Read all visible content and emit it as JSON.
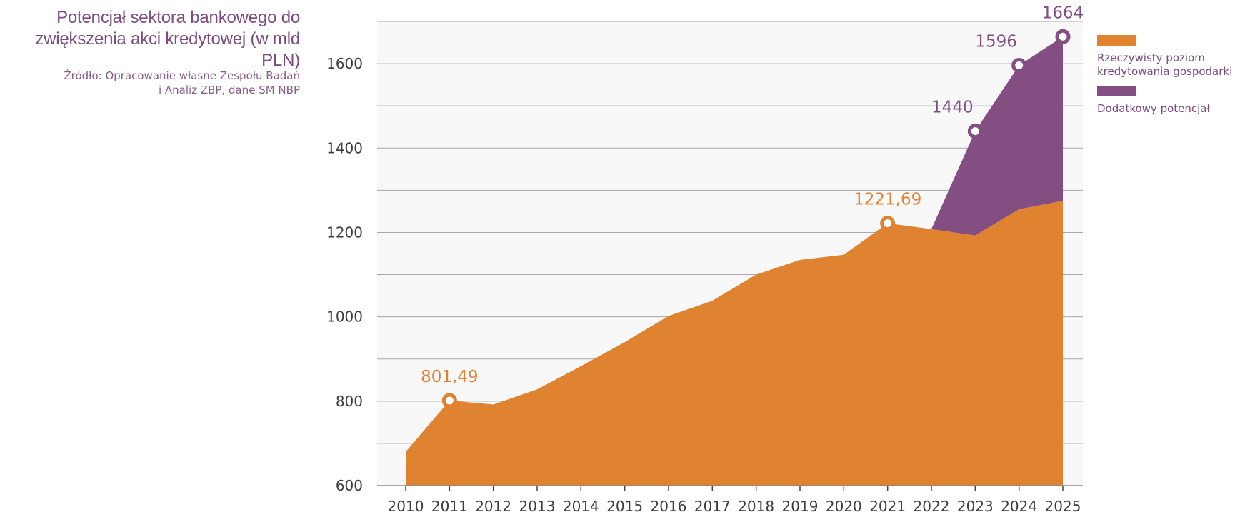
{
  "header": {
    "title_line1": "Potencjał sektora bankowego do",
    "title_line2": "zwiększenia akci kredytowej (w mld PLN)",
    "source_line1": "Źródło: Opracowanie własne Zespołu Badań",
    "source_line2": "i Analiz ZBP, dane SM NBP"
  },
  "colors": {
    "actual": "#df8330",
    "potential": "#834e82",
    "grid": "#a8a8a8",
    "plot_bg": "#f8f8f8",
    "axis_text": "#3d3d3d"
  },
  "chart_data": {
    "type": "area",
    "title": "Potencjał sektora bankowego do zwiększenia akci kredytowej (w mld PLN)",
    "xlabel": "",
    "ylabel": "",
    "ylim": [
      600,
      1700
    ],
    "yticks": [
      600,
      800,
      1000,
      1200,
      1400,
      1600
    ],
    "grid": true,
    "legend_position": "right",
    "categories": [
      "2010",
      "2011",
      "2012",
      "2013",
      "2014",
      "2015",
      "2016",
      "2017",
      "2018",
      "2019",
      "2020",
      "2021",
      "2022",
      "2023",
      "2024",
      "2025"
    ],
    "series": [
      {
        "name": "Rzeczywisty poziom kredytowania gospodarki",
        "legend_line1": "Rzeczywisty poziom",
        "legend_line2": "kredytowania gospodarki",
        "values": [
          680,
          801.49,
          792,
          828,
          883,
          940,
          1002,
          1038,
          1100,
          1135,
          1147,
          1221.69,
          1208,
          1193,
          1255,
          1275
        ]
      },
      {
        "name": "Dodatkowy potencjał",
        "legend_line1": "Dodatkowy potencjał",
        "values": [
          null,
          null,
          null,
          null,
          null,
          null,
          null,
          null,
          null,
          null,
          null,
          null,
          1208,
          1440,
          1596,
          1664
        ]
      }
    ],
    "annotations": [
      {
        "category": "2011",
        "value": 801.49,
        "label": "801,49",
        "series": "actual"
      },
      {
        "category": "2021",
        "value": 1221.69,
        "label": "1221,69",
        "series": "actual"
      },
      {
        "category": "2023",
        "value": 1440,
        "label": "1440",
        "series": "potential"
      },
      {
        "category": "2024",
        "value": 1596,
        "label": "1596",
        "series": "potential"
      },
      {
        "category": "2025",
        "value": 1664,
        "label": "1664",
        "series": "potential"
      }
    ]
  }
}
